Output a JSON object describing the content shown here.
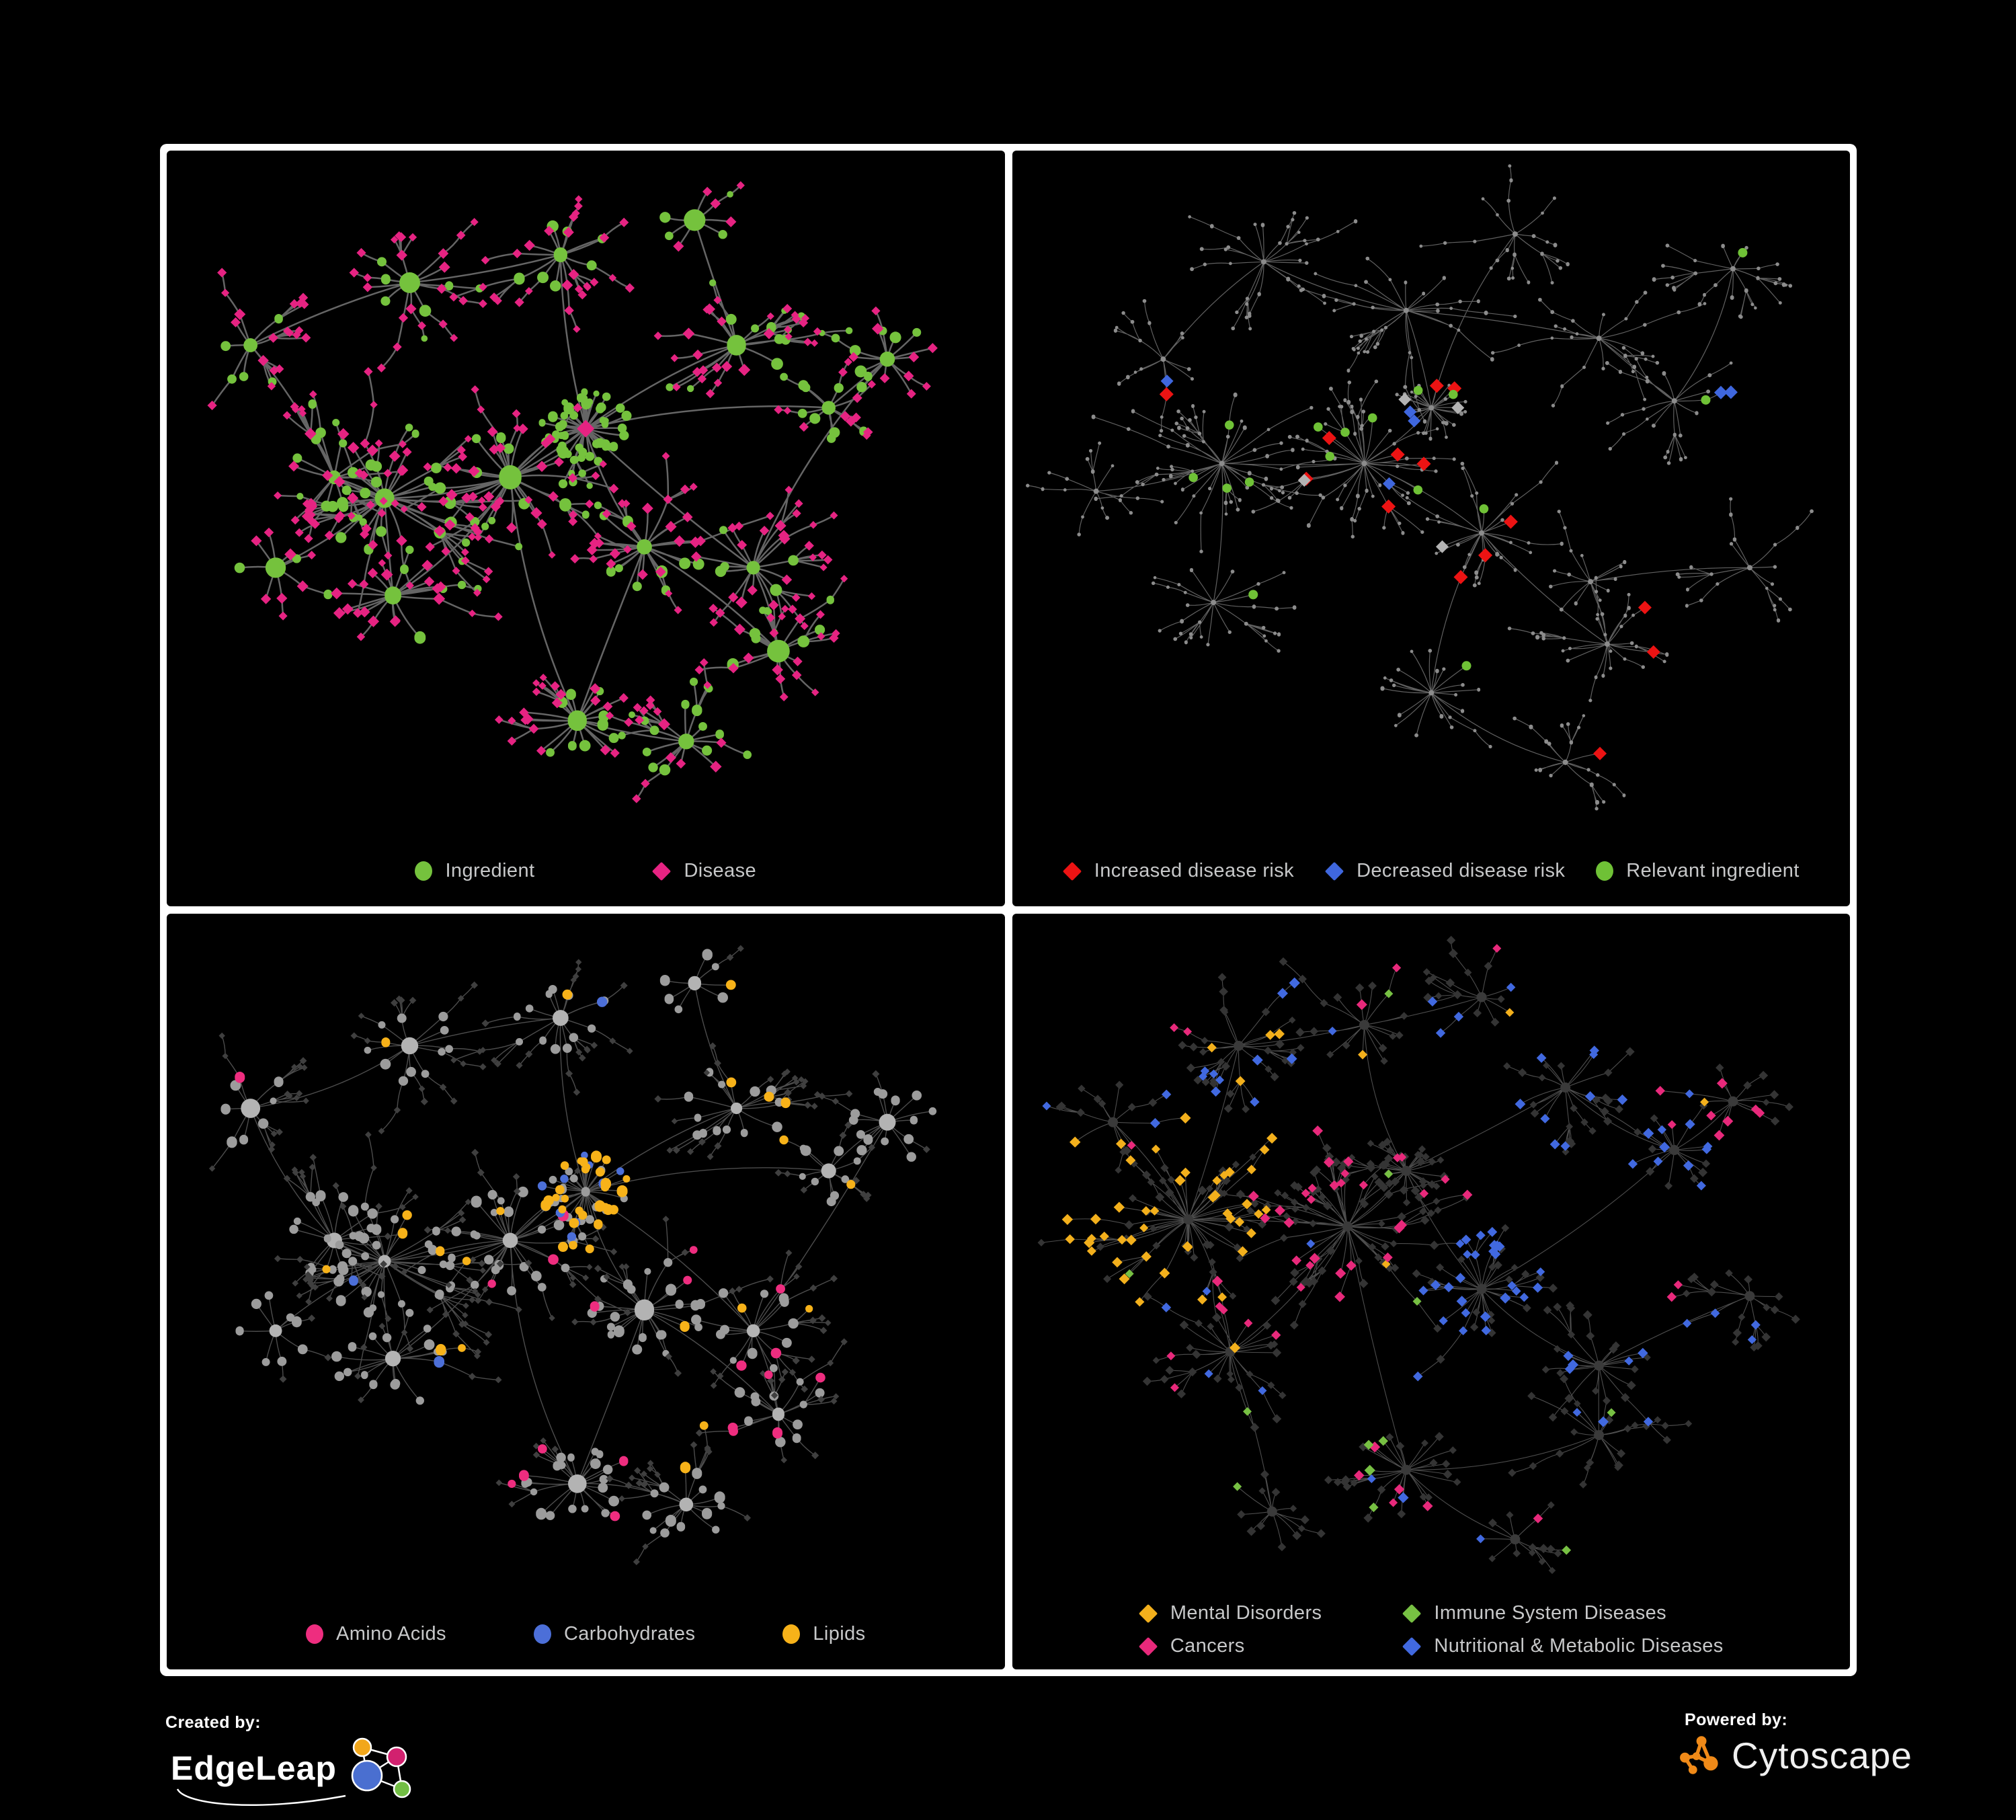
{
  "figure": {
    "background": "#000000",
    "frame_color": "#FFFFFF"
  },
  "panels": [
    {
      "id": "ingredient-disease",
      "legend": [
        {
          "label": "Ingredient",
          "shape": "circle",
          "color": "#75C23D"
        },
        {
          "label": "Disease",
          "shape": "diamond",
          "color": "#E62382"
        }
      ],
      "style": {
        "edge_color": "#6E6E6E",
        "edge_width": 2.5,
        "edge_opacity": 0.92
      },
      "palette": {
        "ingredient": {
          "shape": "circle",
          "color": "#75C23D"
        },
        "disease": {
          "shape": "diamond",
          "color": "#E62382"
        }
      },
      "network": {
        "layout": "A",
        "seed": 11,
        "style_seed": 5,
        "approx_nodes": 560
      }
    },
    {
      "id": "disease-risk",
      "legend": [
        {
          "label": "Increased disease risk",
          "shape": "diamond",
          "color": "#EC1313"
        },
        {
          "label": "Decreased disease risk",
          "shape": "diamond",
          "color": "#3F67DE"
        },
        {
          "label": "Relevant ingredient",
          "shape": "circle",
          "color": "#6FC136"
        }
      ],
      "style": {
        "edge_color": "#6A6A6A",
        "edge_width": 1.2,
        "edge_opacity": 0.9
      },
      "palette": {
        "dot": {
          "shape": "circle",
          "color": "#8C8C8C"
        },
        "increased": {
          "shape": "diamond",
          "color": "#EC1313"
        },
        "decreased": {
          "shape": "diamond",
          "color": "#3F67DE"
        },
        "neutral": {
          "shape": "diamond",
          "color": "#B3B3B3"
        },
        "relevant": {
          "shape": "circle",
          "color": "#6FC136"
        }
      },
      "network": {
        "layout": "B",
        "seed": 47,
        "style_seed": 21,
        "approx_nodes": 460,
        "highlights": {
          "increased": 33,
          "decreased": 10,
          "neutral": 8,
          "relevant": 30
        }
      }
    },
    {
      "id": "macronutrients",
      "legend": [
        {
          "label": "Amino Acids",
          "shape": "circle",
          "color": "#EE2D7F"
        },
        {
          "label": "Carbohydrates",
          "shape": "circle",
          "color": "#4C6FD8"
        },
        {
          "label": "Lipids",
          "shape": "circle",
          "color": "#F7B219"
        }
      ],
      "style": {
        "edge_color": "#535353",
        "edge_width": 1.4,
        "edge_opacity": 0.92
      },
      "palette": {
        "hubgray": {
          "shape": "circle",
          "color": "#B3B3B3"
        },
        "midgray": {
          "shape": "circle",
          "color": "#9C9C9C"
        },
        "leafdark": {
          "shape": "diamond",
          "color": "#3F3F3F"
        },
        "amino": {
          "shape": "circle",
          "color": "#EE2D7F"
        },
        "carb": {
          "shape": "circle",
          "color": "#4C6FD8"
        },
        "lipid": {
          "shape": "circle",
          "color": "#F7B219"
        }
      },
      "network": {
        "layout": "A",
        "seed": 11,
        "style_seed": 29,
        "approx_nodes": 560
      }
    },
    {
      "id": "disease-classes",
      "legend": [
        {
          "label": "Mental Disorders",
          "shape": "diamond",
          "color": "#F3B01C"
        },
        {
          "label": "Cancers",
          "shape": "diamond",
          "color": "#E8297B"
        },
        {
          "label": "Immune System Diseases",
          "shape": "diamond",
          "color": "#77C043"
        },
        {
          "label": "Nutritional & Metabolic Diseases",
          "shape": "diamond",
          "color": "#4169E0"
        }
      ],
      "style": {
        "edge_color": "#5A5A5A",
        "edge_width": 1.1,
        "edge_opacity": 0.85
      },
      "palette": {
        "base": {
          "shape": "diamond",
          "color": "#343434"
        },
        "basehub": {
          "shape": "circle",
          "color": "#3A3A3A"
        },
        "mental": {
          "shape": "diamond",
          "color": "#F3B01C"
        },
        "cancer": {
          "shape": "diamond",
          "color": "#E8297B"
        },
        "immune": {
          "shape": "diamond",
          "color": "#77C043"
        },
        "nutri": {
          "shape": "diamond",
          "color": "#4169E0"
        }
      },
      "network": {
        "layout": "C",
        "seed": 83,
        "style_seed": 61,
        "approx_nodes": 640
      }
    }
  ],
  "footer": {
    "created_by": {
      "label": "Created by:",
      "brand": "EdgeLeap",
      "logo_colors": {
        "orange": "#F2A71B",
        "magenta": "#D2216F",
        "blue": "#4A6FD0",
        "green": "#72BE44"
      }
    },
    "powered_by": {
      "label": "Powered by:",
      "brand": "Cytoscape",
      "icon_color": "#F08A18"
    }
  }
}
